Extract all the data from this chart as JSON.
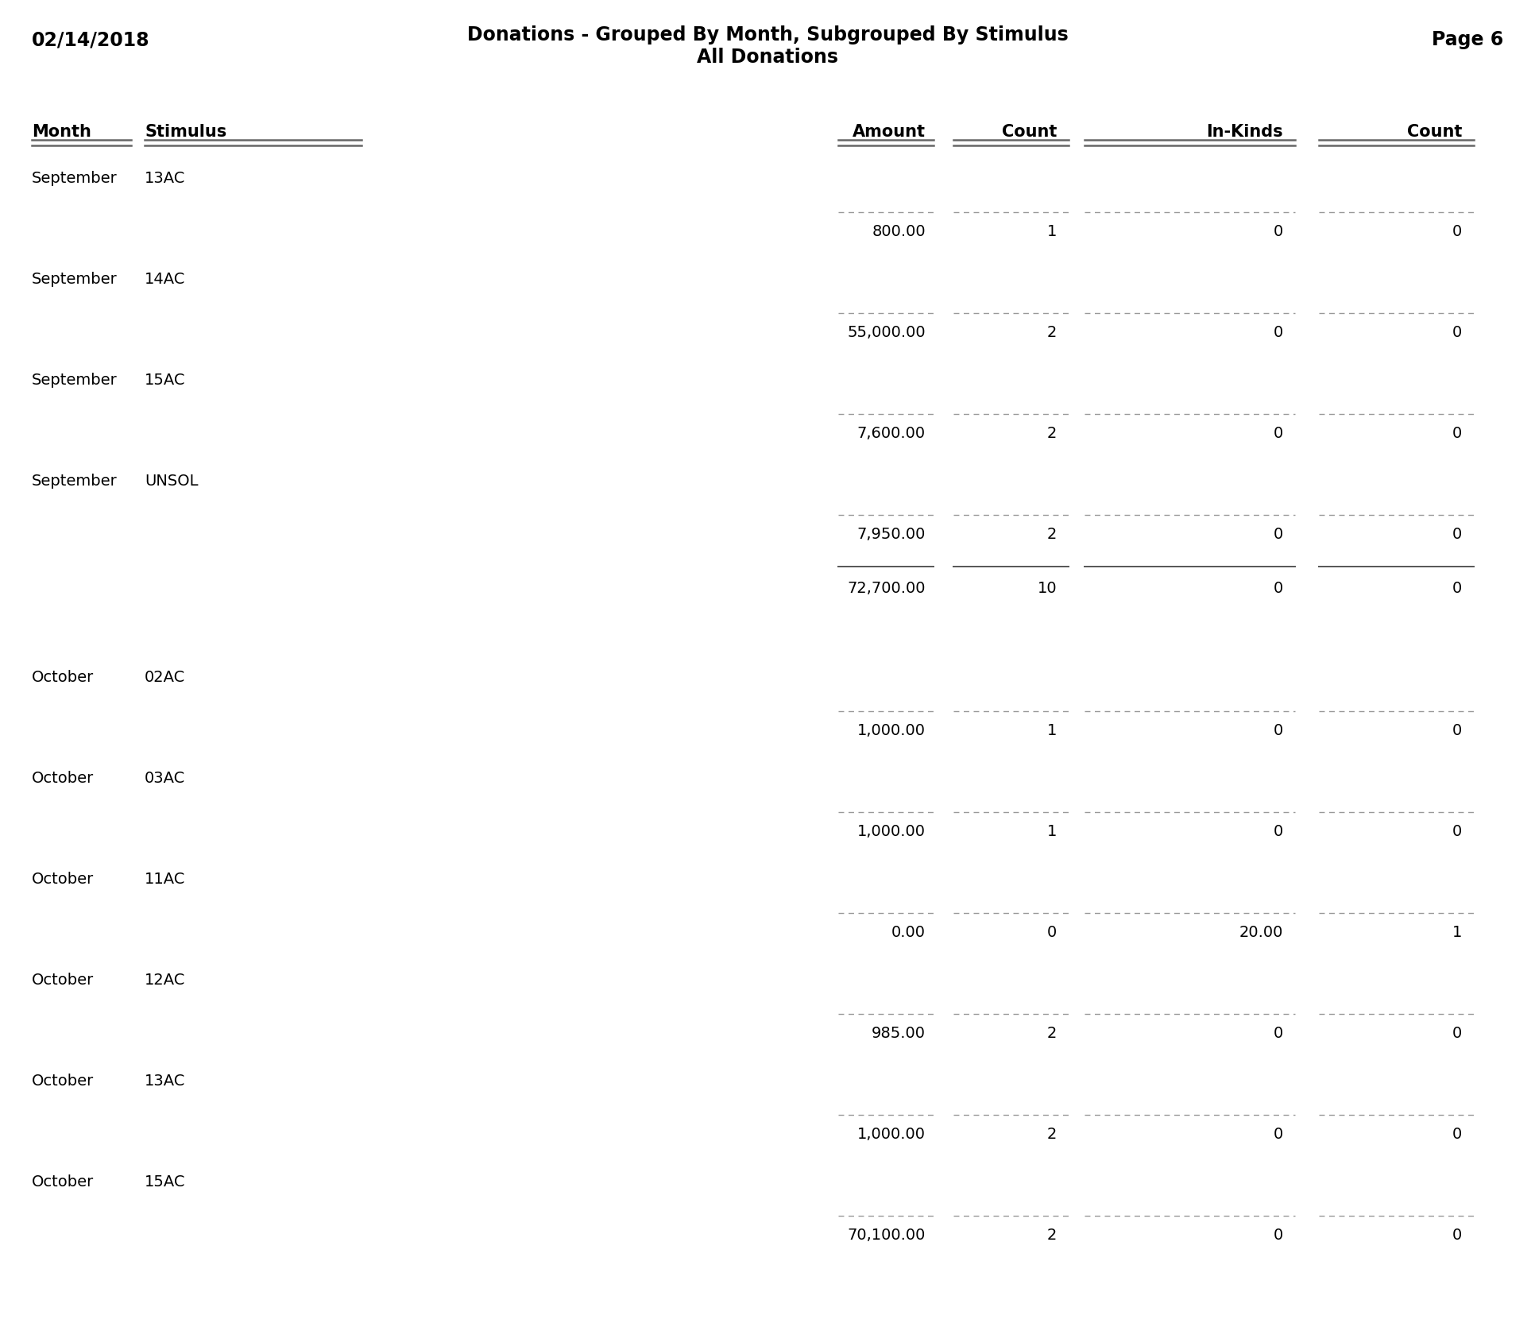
{
  "title_line1": "Donations - Grouped By Month, Subgrouped By Stimulus",
  "title_line2": "All Donations",
  "date": "02/14/2018",
  "page": "Page 6",
  "col_headers": [
    "Month",
    "Stimulus",
    "Amount",
    "Count",
    "In-Kinds",
    "Count"
  ],
  "rows": [
    {
      "type": "group_label",
      "month": "September",
      "stimulus": "13AC"
    },
    {
      "type": "dashed_line"
    },
    {
      "type": "data",
      "amount": "800.00",
      "count": "1",
      "inkinds": "0",
      "ikcount": "0"
    },
    {
      "type": "group_label",
      "month": "September",
      "stimulus": "14AC"
    },
    {
      "type": "dashed_line"
    },
    {
      "type": "data",
      "amount": "55,000.00",
      "count": "2",
      "inkinds": "0",
      "ikcount": "0"
    },
    {
      "type": "group_label",
      "month": "September",
      "stimulus": "15AC"
    },
    {
      "type": "dashed_line"
    },
    {
      "type": "data",
      "amount": "7,600.00",
      "count": "2",
      "inkinds": "0",
      "ikcount": "0"
    },
    {
      "type": "group_label",
      "month": "September",
      "stimulus": "UNSOL"
    },
    {
      "type": "dashed_line"
    },
    {
      "type": "data",
      "amount": "7,950.00",
      "count": "2",
      "inkinds": "0",
      "ikcount": "0"
    },
    {
      "type": "solid_line"
    },
    {
      "type": "subtotal",
      "amount": "72,700.00",
      "count": "10",
      "inkinds": "0",
      "ikcount": "0"
    },
    {
      "type": "spacer"
    },
    {
      "type": "group_label",
      "month": "October",
      "stimulus": "02AC"
    },
    {
      "type": "dashed_line"
    },
    {
      "type": "data",
      "amount": "1,000.00",
      "count": "1",
      "inkinds": "0",
      "ikcount": "0"
    },
    {
      "type": "group_label",
      "month": "October",
      "stimulus": "03AC"
    },
    {
      "type": "dashed_line"
    },
    {
      "type": "data",
      "amount": "1,000.00",
      "count": "1",
      "inkinds": "0",
      "ikcount": "0"
    },
    {
      "type": "group_label",
      "month": "October",
      "stimulus": "11AC"
    },
    {
      "type": "dashed_line"
    },
    {
      "type": "data",
      "amount": "0.00",
      "count": "0",
      "inkinds": "20.00",
      "ikcount": "1"
    },
    {
      "type": "group_label",
      "month": "October",
      "stimulus": "12AC"
    },
    {
      "type": "dashed_line"
    },
    {
      "type": "data",
      "amount": "985.00",
      "count": "2",
      "inkinds": "0",
      "ikcount": "0"
    },
    {
      "type": "group_label",
      "month": "October",
      "stimulus": "13AC"
    },
    {
      "type": "dashed_line"
    },
    {
      "type": "data",
      "amount": "1,000.00",
      "count": "2",
      "inkinds": "0",
      "ikcount": "0"
    },
    {
      "type": "group_label",
      "month": "October",
      "stimulus": "15AC"
    },
    {
      "type": "dashed_line"
    },
    {
      "type": "data",
      "amount": "70,100.00",
      "count": "2",
      "inkinds": "0",
      "ikcount": "0"
    }
  ],
  "bg_color": "#ffffff",
  "text_color": "#000000",
  "fig_width": 19.32,
  "fig_height": 16.75,
  "dpi": 100
}
